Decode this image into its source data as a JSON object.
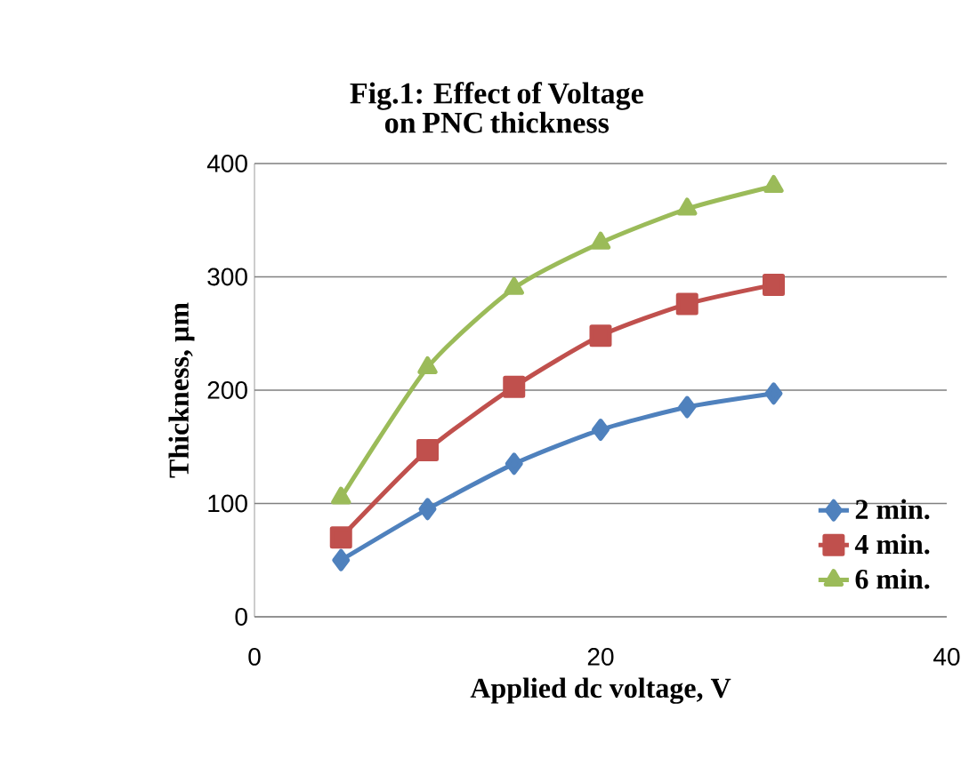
{
  "chart_data": {
    "type": "line",
    "title": "Fig.1: Effect of Voltage on PNC thickness",
    "xlabel": "Applied dc voltage, V",
    "ylabel": "Thickness, µm",
    "x": [
      5,
      10,
      15,
      20,
      25,
      30
    ],
    "xlim": [
      0,
      40
    ],
    "xticks": [
      0,
      20,
      40
    ],
    "ylim": [
      0,
      400
    ],
    "yticks": [
      0,
      100,
      200,
      300,
      400
    ],
    "grid": "y",
    "legend": "right",
    "line_style": "solid",
    "series": [
      {
        "name": "2 min.",
        "color": "#4f81bd",
        "marker": "diamond",
        "values": [
          50,
          95,
          135,
          165,
          185,
          197
        ]
      },
      {
        "name": "4 min.",
        "color": "#c0504d",
        "marker": "square",
        "values": [
          70,
          147,
          203,
          248,
          276,
          293
        ]
      },
      {
        "name": "6 min.",
        "color": "#9bbb59",
        "marker": "triangle",
        "values": [
          105,
          220,
          290,
          330,
          360,
          380
        ]
      }
    ]
  }
}
